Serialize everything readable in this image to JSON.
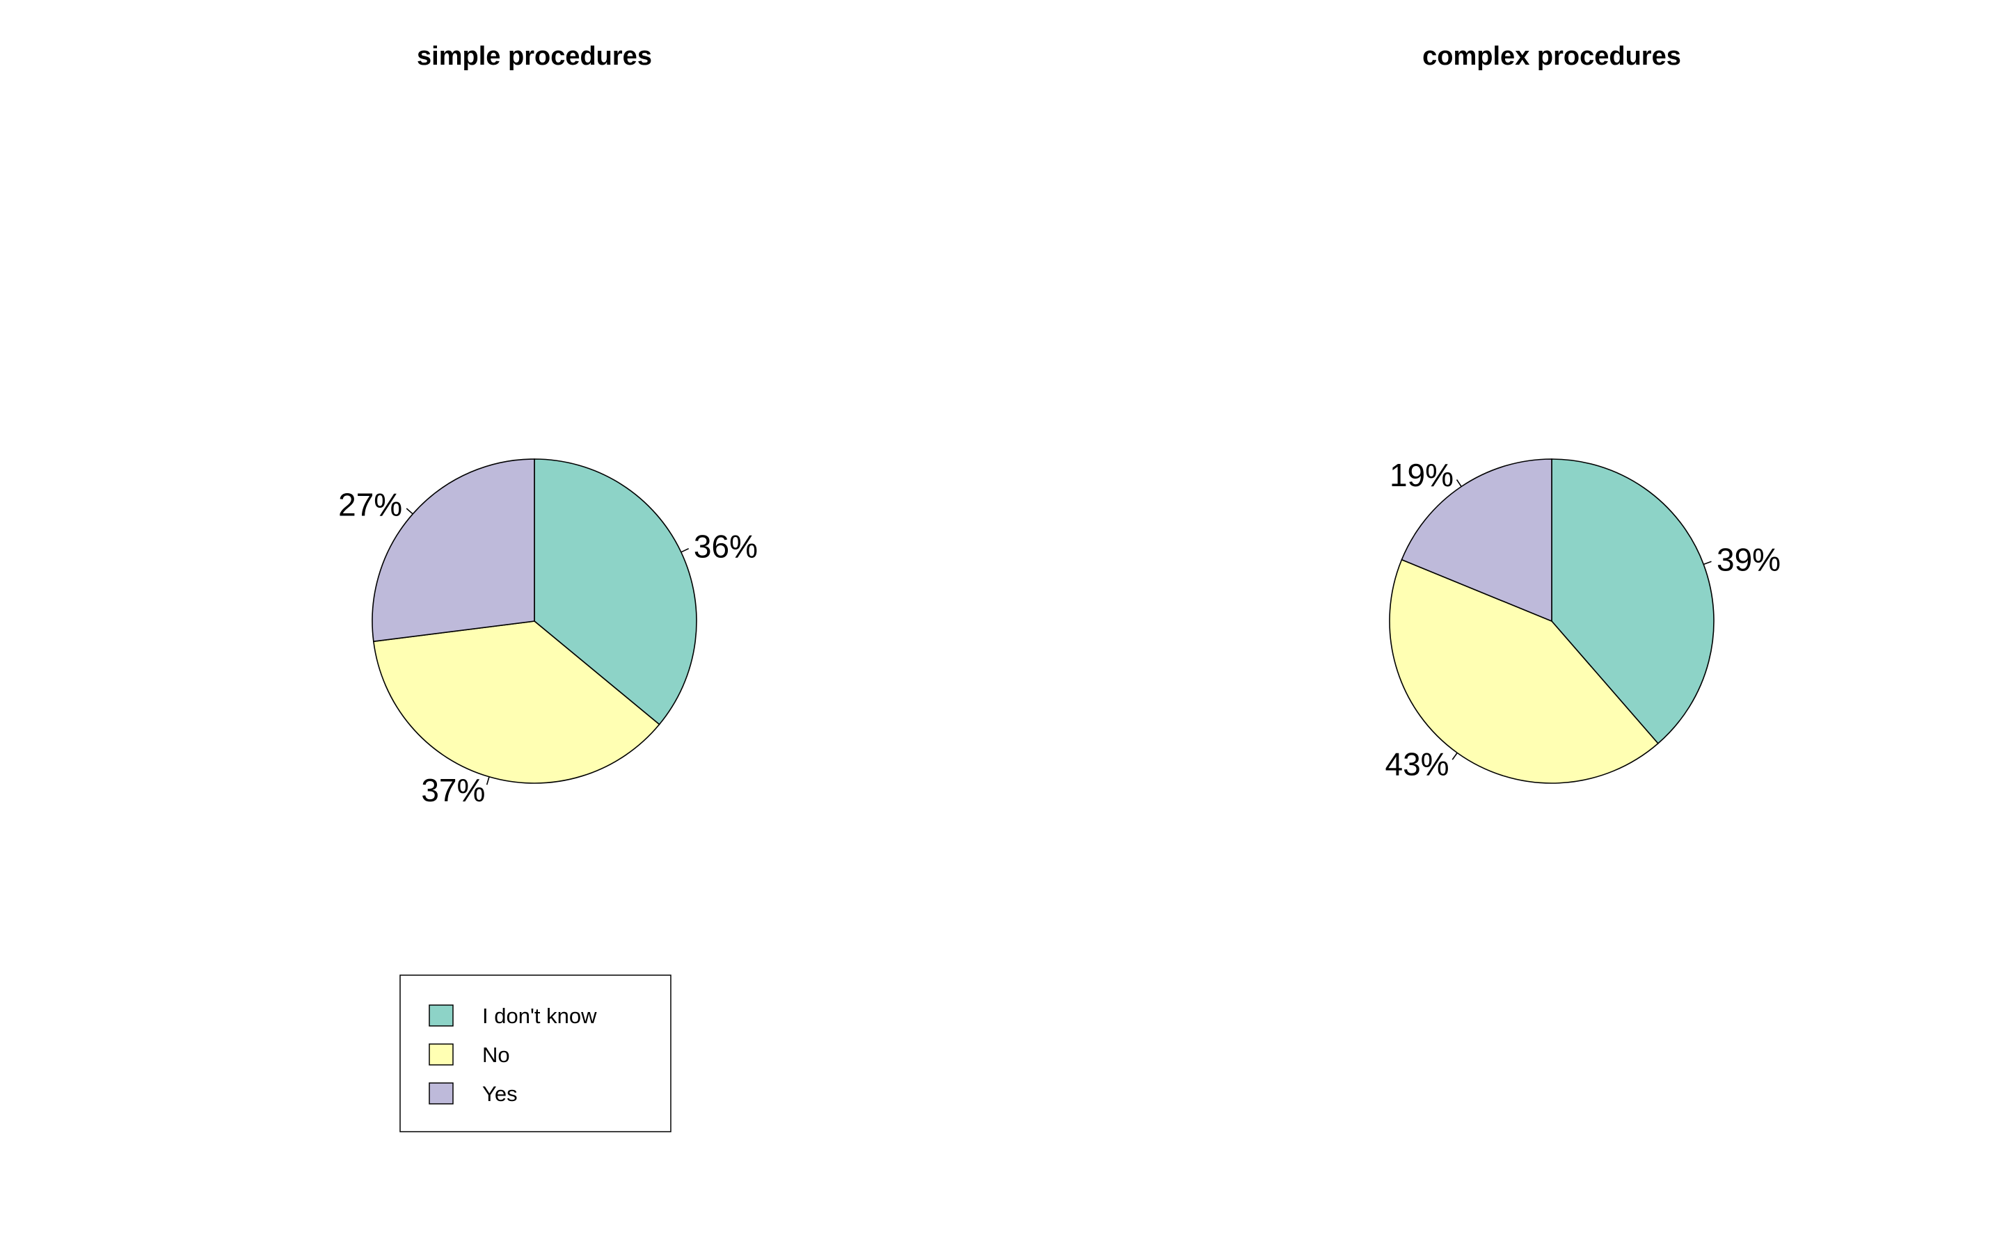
{
  "chart_data": [
    {
      "type": "pie",
      "title": "simple procedures",
      "slices": [
        {
          "label": "I don't know",
          "value": 36,
          "text": "36%"
        },
        {
          "label": "No",
          "value": 37,
          "text": "37%"
        },
        {
          "label": "Yes",
          "value": 27,
          "text": "27%"
        }
      ]
    },
    {
      "type": "pie",
      "title": "complex procedures",
      "slices": [
        {
          "label": "I don't know",
          "value": 39,
          "text": "39%"
        },
        {
          "label": "No",
          "value": 43,
          "text": "43%"
        },
        {
          "label": "Yes",
          "value": 19,
          "text": "19%"
        }
      ]
    }
  ],
  "legend": {
    "placement": "bottom-left",
    "items": [
      {
        "label": "I don't know",
        "color": "#8DD3C7"
      },
      {
        "label": "No",
        "color": "#FFFFB3"
      },
      {
        "label": "Yes",
        "color": "#BEBADA"
      }
    ]
  }
}
